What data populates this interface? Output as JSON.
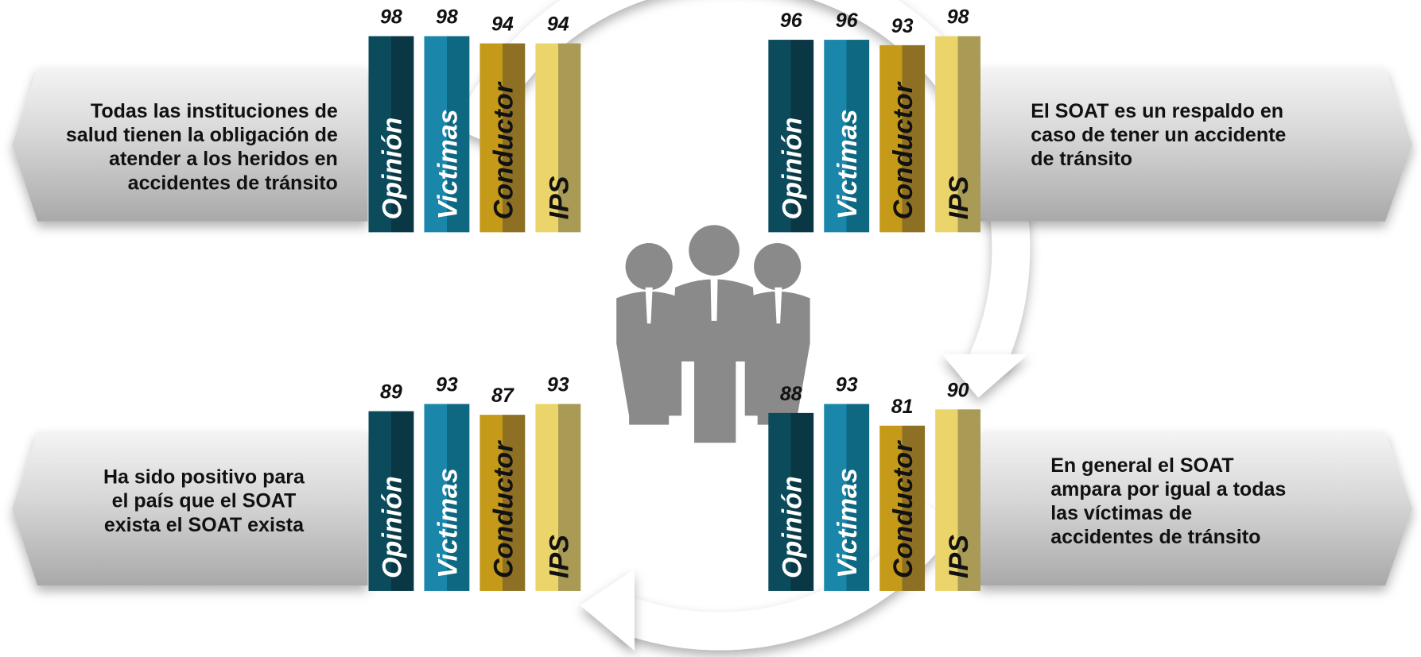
{
  "panels": [
    {
      "statement": [
        "Todas las instituciones de",
        "salud tienen la obligación  de",
        "atender a los heridos en",
        "accidentes de tránsito"
      ],
      "categories": [
        "Opinión",
        "Victimas",
        "Conductor",
        "IPS"
      ],
      "values": [
        98,
        98,
        94,
        94
      ]
    },
    {
      "statement": [
        "El SOAT es un respaldo en",
        "caso de tener un accidente",
        "de tránsito"
      ],
      "categories": [
        "Opinión",
        "Victimas",
        "Conductor",
        "IPS"
      ],
      "values": [
        96,
        96,
        93,
        98
      ]
    },
    {
      "statement": [
        "Ha sido positivo para",
        "el país que el SOAT",
        "exista el SOAT exista"
      ],
      "categories": [
        "Opinión",
        "Victimas",
        "Conductor",
        "IPS"
      ],
      "values": [
        89,
        93,
        87,
        93
      ]
    },
    {
      "statement": [
        "En general el SOAT",
        "ampara por igual a todas",
        "las  víctimas de",
        "accidentes de tránsito"
      ],
      "categories": [
        "Opinión",
        "Victimas",
        "Conductor",
        "IPS"
      ],
      "values": [
        88,
        93,
        81,
        90
      ]
    }
  ]
}
